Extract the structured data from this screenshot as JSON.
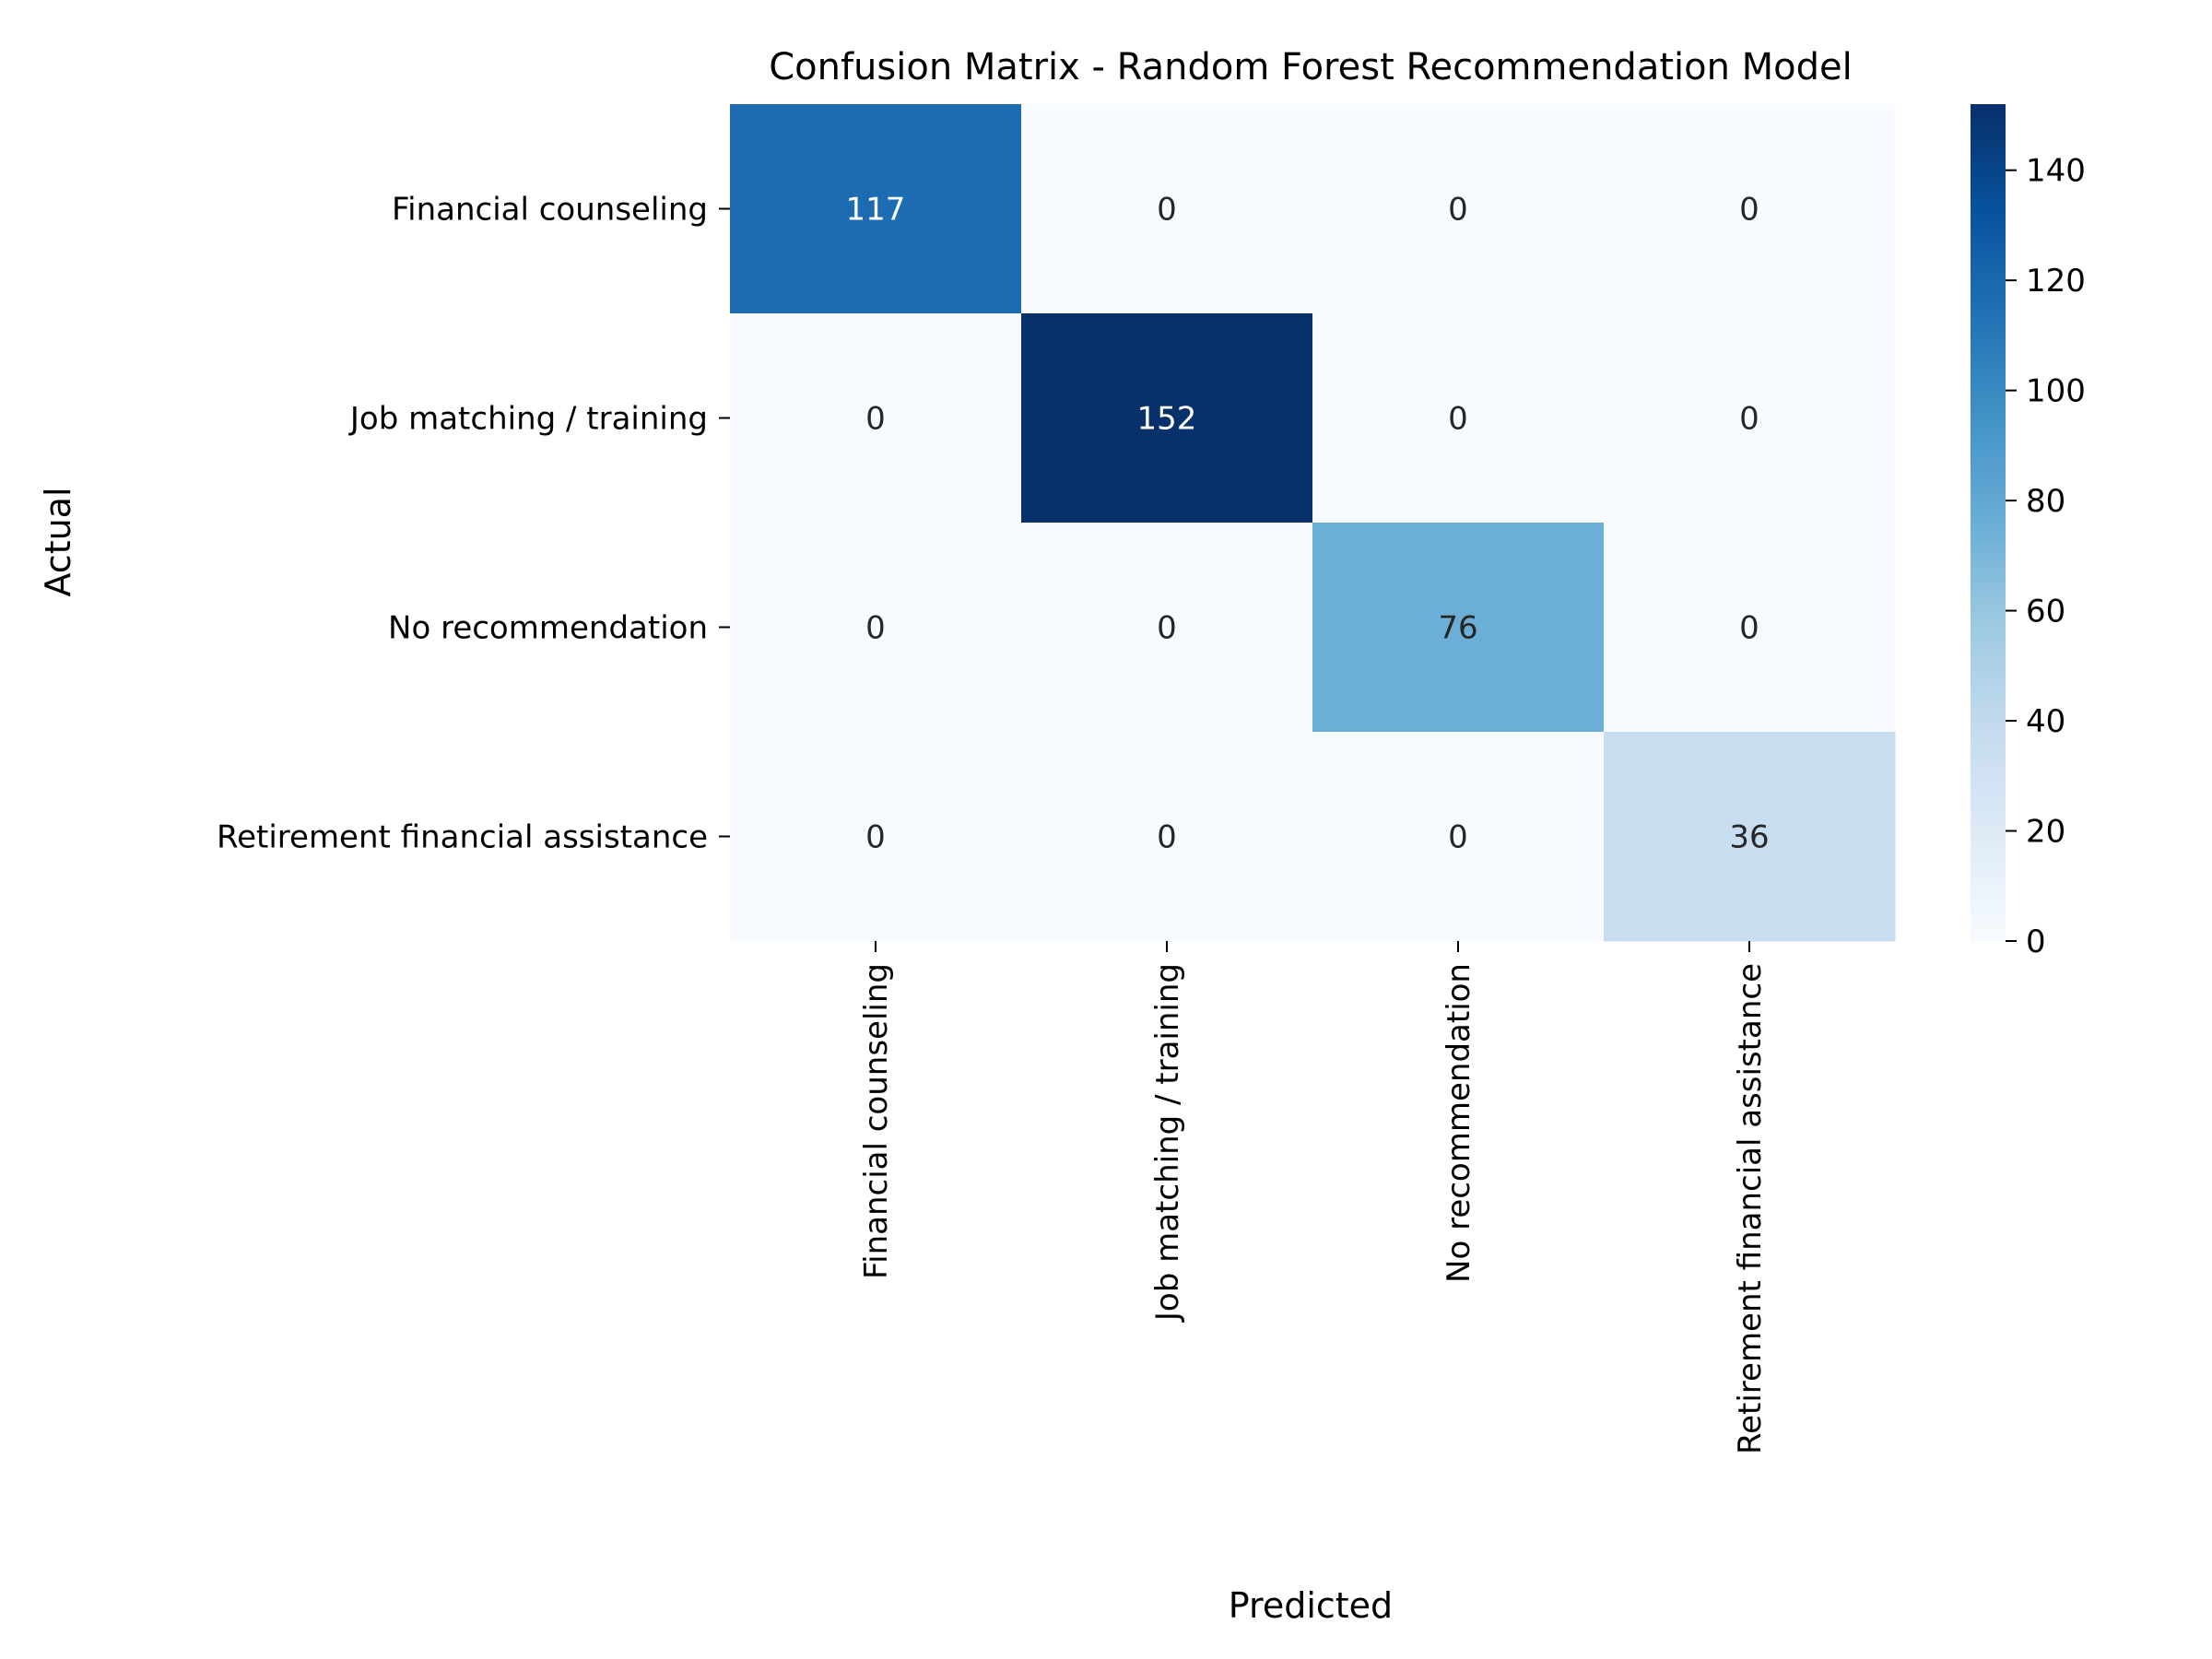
{
  "chart_data": {
    "type": "heatmap",
    "title": "Confusion Matrix - Random Forest Recommendation Model",
    "xlabel": "Predicted",
    "ylabel": "Actual",
    "rows": [
      "Financial counseling",
      "Job matching / training",
      "No recommendation",
      "Retirement financial assistance"
    ],
    "columns": [
      "Financial counseling",
      "Job matching / training",
      "No recommendation",
      "Retirement financial assistance"
    ],
    "values": [
      [
        117,
        0,
        0,
        0
      ],
      [
        0,
        152,
        0,
        0
      ],
      [
        0,
        0,
        76,
        0
      ],
      [
        0,
        0,
        0,
        36
      ]
    ],
    "colorbar": {
      "range": [
        0,
        152
      ],
      "ticks": [
        0,
        20,
        40,
        60,
        80,
        100,
        120,
        140
      ],
      "colormap": "Blues"
    }
  }
}
